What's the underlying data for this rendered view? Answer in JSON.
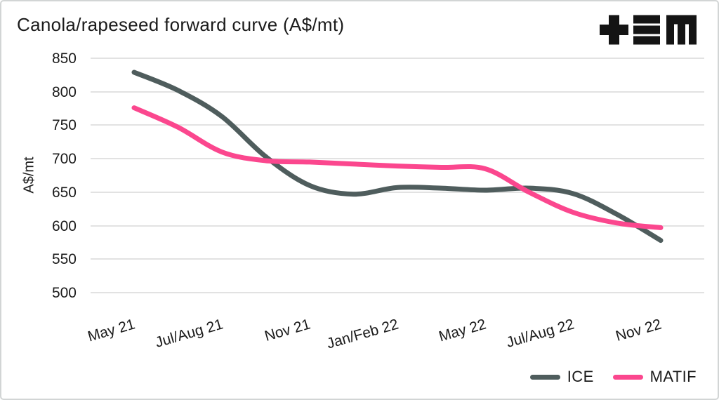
{
  "title": "Canola/rapeseed forward curve (A$/mt)",
  "logo": {
    "name": "tem-logo",
    "color": "#141414"
  },
  "text_color": "#1b1b1b",
  "grid_color": "#e2e2e2",
  "chart_data": {
    "type": "line",
    "title": "Canola/rapeseed forward curve (A$/mt)",
    "xlabel": "",
    "ylabel": "A$/mt",
    "ylim": [
      500,
      850
    ],
    "yticks": [
      850,
      800,
      750,
      700,
      650,
      600,
      550,
      500
    ],
    "categories": [
      "May 21",
      "Jul/Aug 21",
      "Nov 21",
      "Jan/Feb 22",
      "May 22",
      "Jul/Aug 22",
      "Nov 22"
    ],
    "x_note": "x is in category-tick units (0 = May 21, 6 = Nov 22), curves sampled every half tick",
    "x": [
      0,
      0.5,
      1,
      1.5,
      2,
      2.5,
      3,
      3.5,
      4,
      4.5,
      5,
      5.5,
      6
    ],
    "series": [
      {
        "name": "ICE",
        "color": "#4f5d5d",
        "values": [
          829,
          802,
          763,
          703,
          660,
          647,
          657,
          656,
          653,
          656,
          648,
          617,
          578
        ]
      },
      {
        "name": "MATIF",
        "color": "#fb478e",
        "values": [
          776,
          747,
          710,
          697,
          695,
          692,
          689,
          687,
          685,
          650,
          620,
          604,
          597
        ]
      }
    ],
    "grid": "horizontal",
    "legend_position": "bottom-right",
    "line_width": 7
  },
  "legend": {
    "items": [
      {
        "label": "ICE",
        "color": "#4f5d5d"
      },
      {
        "label": "MATIF",
        "color": "#fb478e"
      }
    ]
  }
}
